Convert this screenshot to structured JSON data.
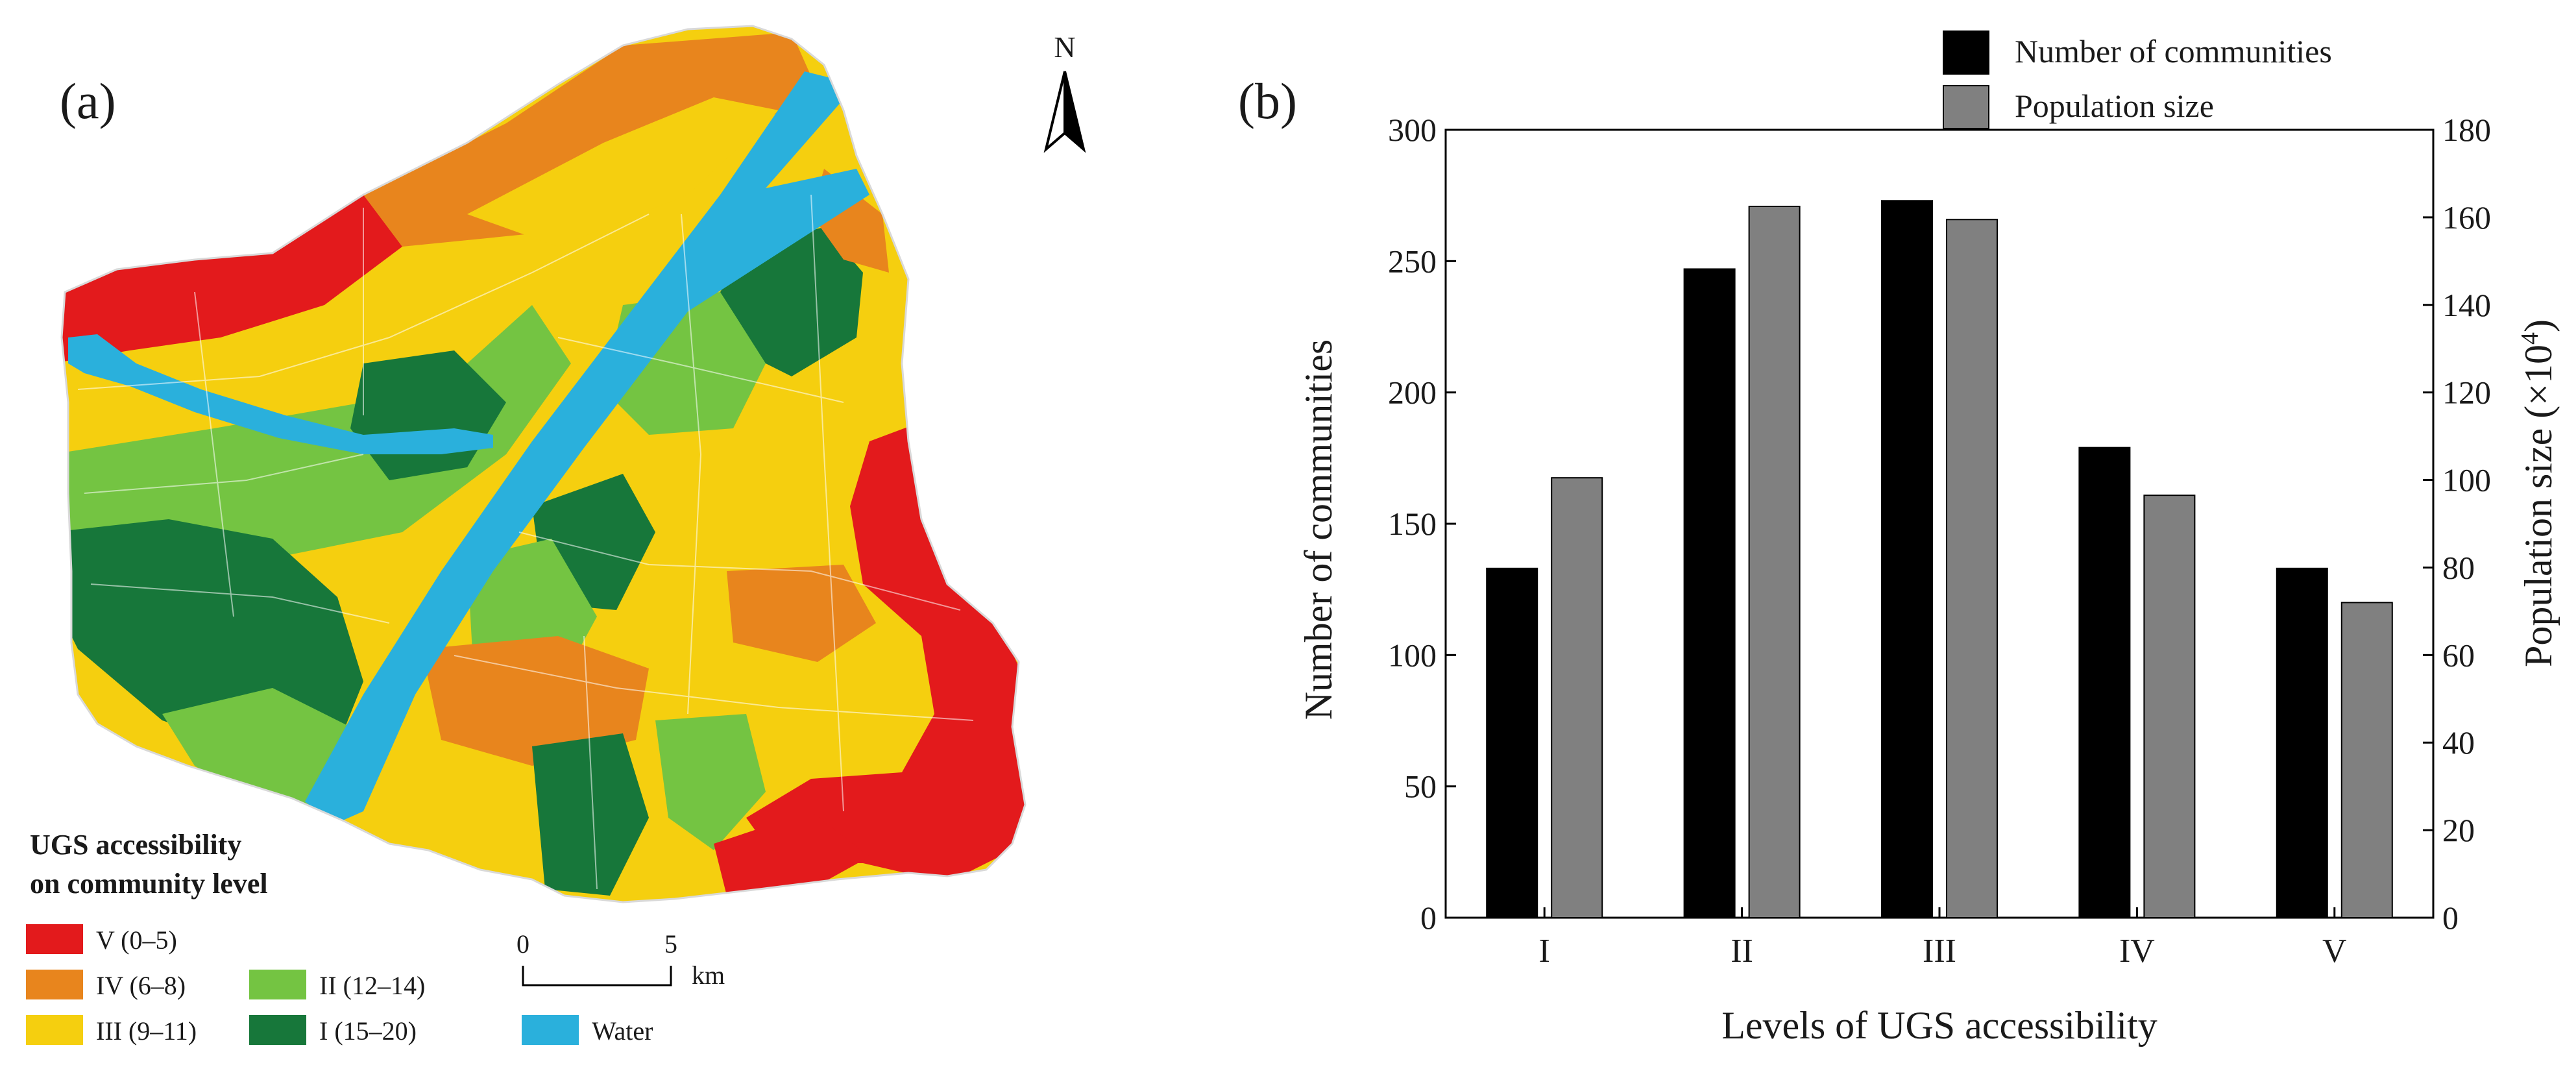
{
  "map_panel": {
    "panel_label": "(a)",
    "north_label": "N",
    "legend": {
      "title_line1": "UGS accessibility",
      "title_line2": "on community level",
      "items": [
        {
          "label": "V (0–5)",
          "color": "#e31a1c"
        },
        {
          "label": "IV (6–8)",
          "color": "#e8851d"
        },
        {
          "label": "III (9–11)",
          "color": "#f5cf0f"
        },
        {
          "label": "II (12–14)",
          "color": "#74c442"
        },
        {
          "label": "I (15–20)",
          "color": "#17773a"
        },
        {
          "label": "Water",
          "color": "#2ab0dc"
        }
      ]
    },
    "scale_bar": {
      "start": "0",
      "end": "5",
      "unit": "km"
    }
  },
  "chart_panel": {
    "panel_label": "(b)"
  },
  "chart_data": {
    "type": "bar",
    "title": "",
    "categories": [
      "I",
      "II",
      "III",
      "IV",
      "V"
    ],
    "xlabel": "Levels of UGS accessibility",
    "ylabel": "Number of communities",
    "y2label_main": "Population size (×10",
    "y2label_sup": "4",
    "y2label_end": ")",
    "ylim": [
      0,
      300
    ],
    "y2lim": [
      0,
      180
    ],
    "yticks": [
      "0",
      "50",
      "100",
      "150",
      "200",
      "250",
      "300"
    ],
    "y2ticks": [
      "0",
      "20",
      "40",
      "60",
      "80",
      "100",
      "120",
      "140",
      "160",
      "180"
    ],
    "legend_position": "top-right",
    "series": [
      {
        "name": "Number of communities",
        "axis": "left",
        "color": "#000000",
        "values": [
          133,
          247,
          273,
          179,
          133
        ]
      },
      {
        "name": "Population size",
        "axis": "right",
        "color": "#808080",
        "values": [
          100.5,
          162.5,
          159.5,
          96.5,
          72
        ]
      }
    ]
  }
}
